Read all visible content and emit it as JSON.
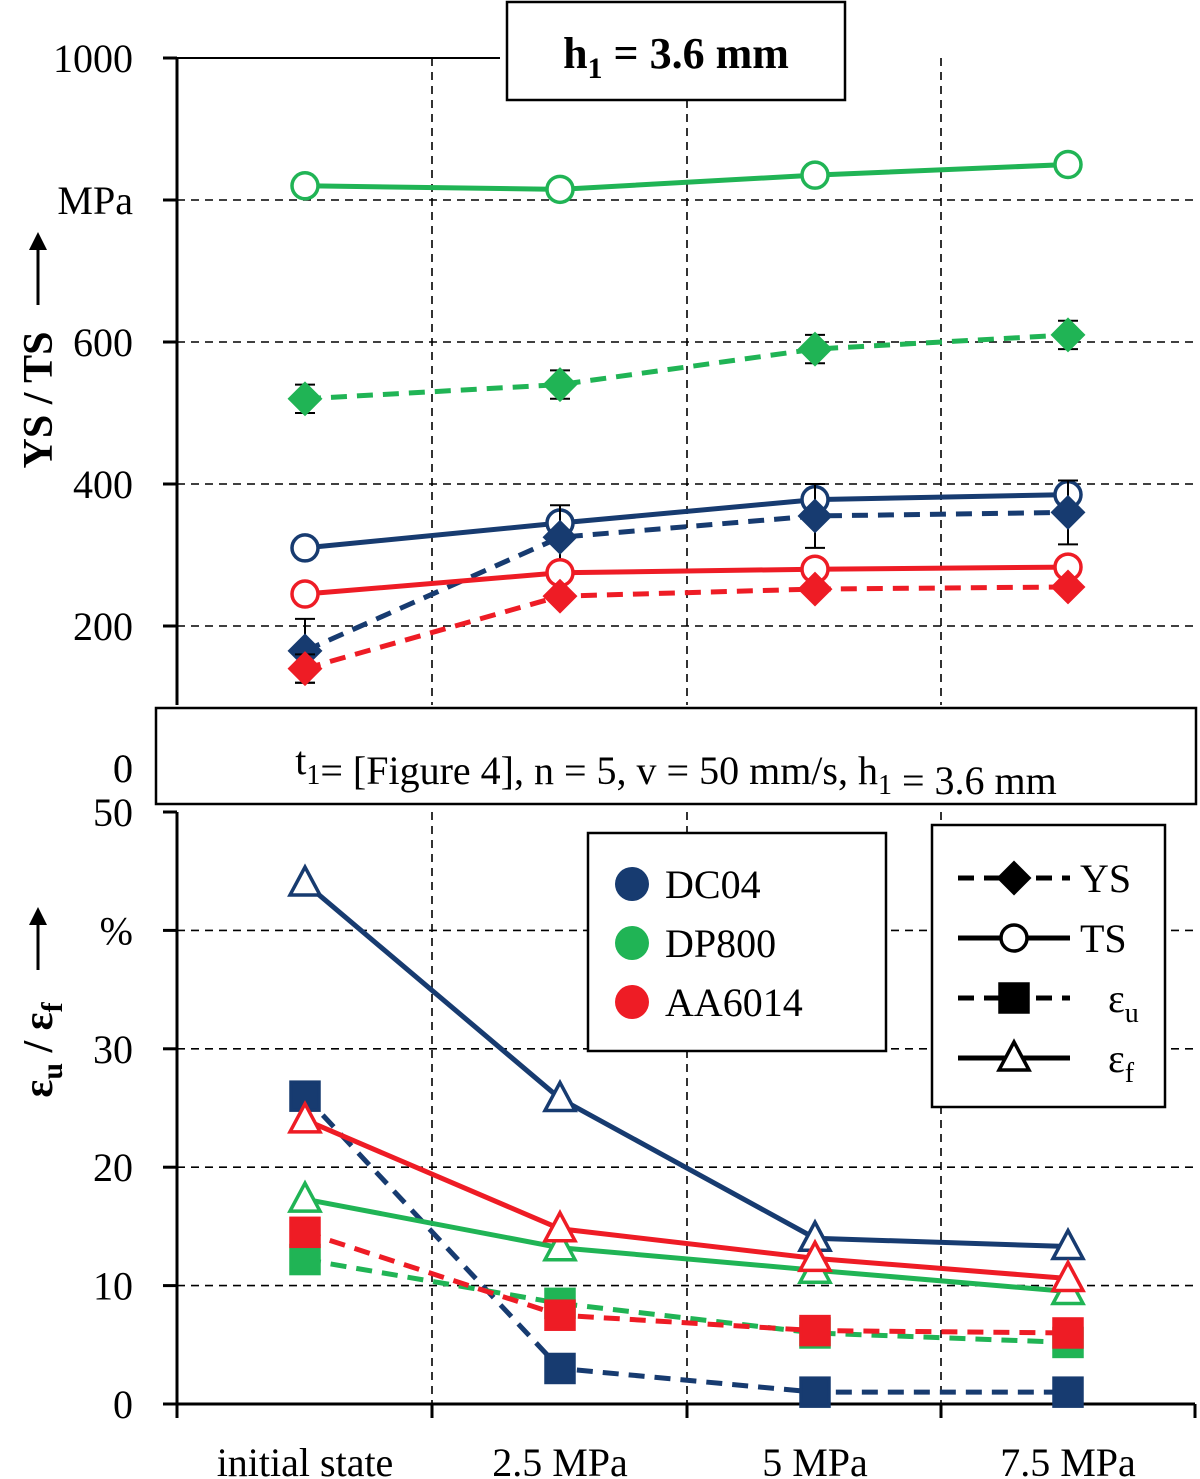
{
  "chart_data": [
    {
      "type": "line",
      "title": "h1 = 3.6 mm",
      "ylabel": "YS / TS",
      "yunit": "MPa",
      "ylim": [
        0,
        1000
      ],
      "yticks": [
        "0",
        "200",
        "400",
        "600",
        "1000"
      ],
      "categories": [
        "initial state",
        "2.5 MPa",
        "5 MPa",
        "7.5 MPa"
      ],
      "grid": true,
      "series": [
        {
          "name": "DP800 TS",
          "material": "DP800",
          "quantity": "TS",
          "values": [
            820,
            815,
            835,
            850
          ]
        },
        {
          "name": "DP800 YS",
          "material": "DP800",
          "quantity": "YS",
          "values": [
            520,
            540,
            590,
            610
          ],
          "errors": [
            20,
            20,
            20,
            20
          ]
        },
        {
          "name": "DC04 TS",
          "material": "DC04",
          "quantity": "TS",
          "values": [
            310,
            345,
            378,
            385
          ]
        },
        {
          "name": "DC04 YS",
          "material": "DC04",
          "quantity": "YS",
          "values": [
            165,
            325,
            355,
            360
          ],
          "errors": [
            45,
            45,
            45,
            45
          ]
        },
        {
          "name": "AA6014 TS",
          "material": "AA6014",
          "quantity": "TS",
          "values": [
            245,
            275,
            280,
            283
          ]
        },
        {
          "name": "AA6014 YS",
          "material": "AA6014",
          "quantity": "YS",
          "values": [
            140,
            242,
            252,
            255
          ],
          "errors": [
            20,
            0,
            0,
            0
          ]
        }
      ]
    },
    {
      "type": "line",
      "ylabel": "εu / εf",
      "yunit": "%",
      "ylim": [
        0,
        50
      ],
      "yticks": [
        "0",
        "10",
        "20",
        "30",
        "50"
      ],
      "categories": [
        "initial state",
        "2.5 MPa",
        "5 MPa",
        "7.5 MPa"
      ],
      "grid": true,
      "series": [
        {
          "name": "DC04 εf",
          "material": "DC04",
          "quantity": "ef",
          "values": [
            44,
            25.8,
            14,
            13.3
          ]
        },
        {
          "name": "DC04 εu",
          "material": "DC04",
          "quantity": "eu",
          "values": [
            26,
            3,
            1,
            1
          ]
        },
        {
          "name": "DP800 εf",
          "material": "DP800",
          "quantity": "ef",
          "values": [
            17.3,
            13.2,
            11.3,
            9.5
          ]
        },
        {
          "name": "DP800 εu",
          "material": "DP800",
          "quantity": "eu",
          "values": [
            12.2,
            8.5,
            6,
            5.2
          ]
        },
        {
          "name": "AA6014 εf",
          "material": "AA6014",
          "quantity": "ef",
          "values": [
            24,
            14.8,
            12.3,
            10.6
          ]
        },
        {
          "name": "AA6014 εu",
          "material": "AA6014",
          "quantity": "eu",
          "values": [
            14.5,
            7.5,
            6.2,
            6
          ]
        }
      ]
    }
  ],
  "condition_text": "t1= [Figure 4], n = 5, v = 50 mm/s, h1 = 3.6 mm",
  "legend_materials": [
    {
      "name": "DC04",
      "color": "#173b70"
    },
    {
      "name": "DP800",
      "color": "#20b455"
    },
    {
      "name": "AA6014",
      "color": "#ee1c25"
    }
  ],
  "legend_markers": [
    {
      "label": "YS",
      "sub": "",
      "marker": "diamond",
      "dash": true
    },
    {
      "label": "TS",
      "sub": "",
      "marker": "circle",
      "dash": false
    },
    {
      "label": "ε",
      "sub": "u",
      "marker": "square",
      "dash": true
    },
    {
      "label": "ε",
      "sub": "f",
      "marker": "triangle",
      "dash": false
    }
  ]
}
